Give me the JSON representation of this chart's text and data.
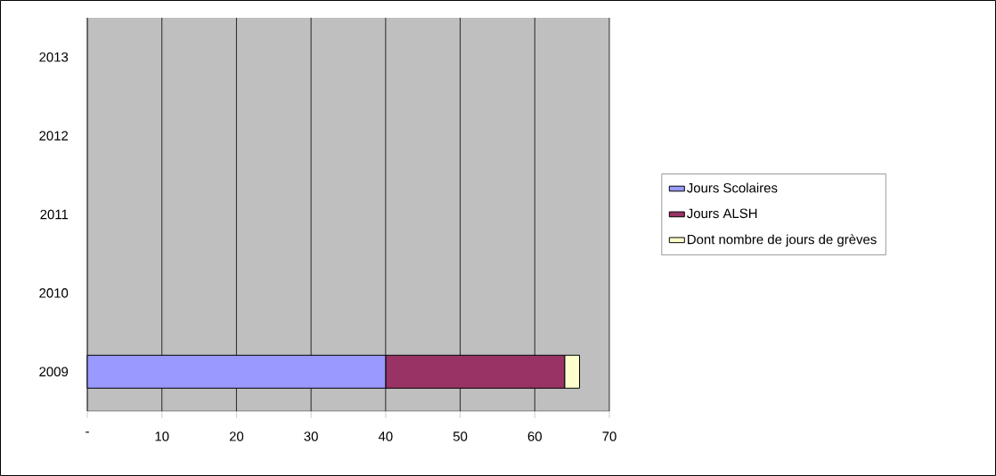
{
  "chart_data": {
    "type": "bar",
    "orientation": "horizontal",
    "stacked": true,
    "categories": [
      "2013",
      "2012",
      "2011",
      "2010",
      "2009"
    ],
    "series": [
      {
        "name": "Jours Scolaires",
        "color": "#9999ff",
        "values": [
          null,
          null,
          null,
          null,
          40
        ]
      },
      {
        "name": "Jours ALSH",
        "color": "#993366",
        "values": [
          null,
          null,
          null,
          null,
          24
        ]
      },
      {
        "name": "Dont nombre de jours de grèves",
        "color": "#ffffcc",
        "values": [
          null,
          null,
          null,
          null,
          2
        ]
      }
    ],
    "xlim": [
      0,
      70
    ],
    "xticks": [
      {
        "value": 0,
        "label": "-"
      },
      10,
      20,
      30,
      40,
      50,
      60,
      70
    ],
    "grid": "x",
    "legend": "right"
  }
}
